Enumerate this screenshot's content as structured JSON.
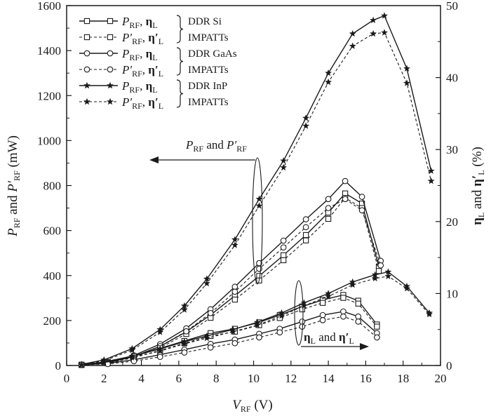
{
  "chart_data": {
    "type": "line",
    "xlabel": {
      "main": "V",
      "sub": "RF",
      "unit": " (V)"
    },
    "ylabel_left": {
      "p1": "P",
      "s1": "RF",
      "mid": " and ",
      "p2": "P′",
      "s2": "RF",
      "unit": " (mW)"
    },
    "ylabel_right": {
      "p1": "η",
      "s1": "L",
      "mid": " and ",
      "p2": "η′",
      "s2": "L",
      "unit": " (%)"
    },
    "xlim": [
      0,
      20
    ],
    "ylim_left": [
      0,
      1600
    ],
    "ylim_right": [
      0,
      50
    ],
    "x_ticks": [
      "0",
      "2",
      "4",
      "6",
      "8",
      "10",
      "12",
      "14",
      "16",
      "18",
      "20"
    ],
    "y_left_ticks": [
      "0",
      "200",
      "400",
      "600",
      "800",
      "1000",
      "1200",
      "1400",
      "1600"
    ],
    "y_right_ticks": [
      "0",
      "10",
      "20",
      "30",
      "40",
      "50"
    ],
    "annotations": {
      "power_group": {
        "p1": "P",
        "s1": "RF",
        "mid": " and ",
        "p2": "P′",
        "s2": "RF"
      },
      "eff_group": {
        "p1": "η",
        "s1": "L",
        "mid": " and ",
        "p2": "η′",
        "s2": "L"
      }
    },
    "legend": {
      "placement": "top-left",
      "entries": [
        {
          "p": "P",
          "ps": "RF",
          "e": "η",
          "es": "L",
          "device": "DDR Si"
        },
        {
          "p": "P′",
          "ps": "RF",
          "e": "η′",
          "es": "L",
          "device": "IMPATTs"
        },
        {
          "p": "P",
          "ps": "RF",
          "e": "η",
          "es": "L",
          "device": "DDR GaAs"
        },
        {
          "p": "P′",
          "ps": "RF",
          "e": "η′",
          "es": "L",
          "device": "IMPATTs"
        },
        {
          "p": "P",
          "ps": "RF",
          "e": "η",
          "es": "L",
          "device": "DDR InP"
        },
        {
          "p": "P′",
          "ps": "RF",
          "e": "η′",
          "es": "L",
          "device": "IMPATTs"
        }
      ]
    },
    "series": [
      {
        "name": "P_RF DDR Si",
        "axis": "left",
        "marker": "square",
        "dash": false,
        "x": [
          0.8,
          2.2,
          3.6,
          5.0,
          6.4,
          7.7,
          9.0,
          10.3,
          11.6,
          12.8,
          14.0,
          14.9,
          15.8,
          16.7
        ],
        "y": [
          3,
          12,
          40,
          85,
          150,
          225,
          310,
          398,
          490,
          580,
          680,
          765,
          720,
          440
        ]
      },
      {
        "name": "P′_RF DDR Si",
        "axis": "left",
        "marker": "square",
        "dash": true,
        "x": [
          0.8,
          2.2,
          3.6,
          5.0,
          6.4,
          7.7,
          9.0,
          10.3,
          11.6,
          12.8,
          14.0,
          14.9,
          15.8,
          16.7
        ],
        "y": [
          2,
          10,
          36,
          79,
          140,
          212,
          293,
          378,
          468,
          556,
          652,
          745,
          700,
          420
        ]
      },
      {
        "name": "P_RF DDR GaAs",
        "axis": "left",
        "marker": "circle",
        "dash": false,
        "x": [
          0.8,
          2.2,
          3.6,
          5.0,
          6.4,
          7.7,
          9.0,
          10.3,
          11.6,
          12.8,
          14.0,
          14.9,
          15.8,
          16.8
        ],
        "y": [
          3,
          14,
          45,
          95,
          165,
          250,
          350,
          455,
          555,
          650,
          740,
          820,
          750,
          465
        ]
      },
      {
        "name": "P′_RF DDR GaAs",
        "axis": "left",
        "marker": "circle",
        "dash": true,
        "x": [
          0.8,
          2.2,
          3.6,
          5.0,
          6.4,
          7.7,
          9.0,
          10.3,
          11.6,
          12.8,
          14.0,
          14.9,
          15.8,
          16.8
        ],
        "y": [
          2,
          11,
          40,
          86,
          152,
          233,
          328,
          430,
          525,
          615,
          700,
          740,
          690,
          445
        ]
      },
      {
        "name": "P_RF DDR InP",
        "axis": "left",
        "marker": "star",
        "dash": false,
        "x": [
          0.8,
          2.0,
          3.5,
          5.0,
          6.3,
          7.5,
          9.0,
          10.3,
          11.6,
          12.8,
          14.0,
          15.3,
          16.4,
          17.0,
          18.2,
          19.5
        ],
        "y": [
          5,
          25,
          75,
          160,
          265,
          385,
          560,
          740,
          910,
          1100,
          1300,
          1475,
          1535,
          1555,
          1320,
          865
        ]
      },
      {
        "name": "P′_RF DDR InP",
        "axis": "left",
        "marker": "star",
        "dash": true,
        "x": [
          0.8,
          2.0,
          3.5,
          5.0,
          6.3,
          7.5,
          9.0,
          10.3,
          11.6,
          12.8,
          14.0,
          15.3,
          16.4,
          17.0,
          18.2,
          19.5
        ],
        "y": [
          4,
          21,
          68,
          148,
          248,
          365,
          535,
          710,
          880,
          1065,
          1260,
          1420,
          1475,
          1480,
          1255,
          820
        ]
      },
      {
        "name": "η_L DDR Si",
        "axis": "right",
        "marker": "square",
        "dash": false,
        "x": [
          0.8,
          2.2,
          3.6,
          5.0,
          6.3,
          7.7,
          9.0,
          10.3,
          11.4,
          12.6,
          13.7,
          14.8,
          15.6,
          16.6
        ],
        "y": [
          0.1,
          0.5,
          1.3,
          2.4,
          3.4,
          4.5,
          5.1,
          6.0,
          7.0,
          8.2,
          9.1,
          9.8,
          9.0,
          5.7
        ]
      },
      {
        "name": "η′_L DDR Si",
        "axis": "right",
        "marker": "square",
        "dash": true,
        "x": [
          0.8,
          2.2,
          3.6,
          5.0,
          6.3,
          7.7,
          9.0,
          10.3,
          11.4,
          12.6,
          13.7,
          14.8,
          15.6,
          16.6
        ],
        "y": [
          0.1,
          0.4,
          1.1,
          2.1,
          3.1,
          4.1,
          4.7,
          5.6,
          6.6,
          7.8,
          8.7,
          9.4,
          8.6,
          5.4
        ]
      },
      {
        "name": "η_L DDR GaAs",
        "axis": "right",
        "marker": "circle",
        "dash": false,
        "x": [
          0.8,
          2.2,
          3.6,
          5.0,
          6.3,
          7.7,
          9.0,
          10.3,
          11.4,
          12.6,
          13.7,
          14.8,
          15.6,
          16.6
        ],
        "y": [
          0.1,
          0.3,
          0.8,
          1.5,
          2.2,
          3.0,
          3.6,
          4.4,
          5.1,
          6.1,
          7.0,
          7.5,
          6.8,
          4.5
        ]
      },
      {
        "name": "η′_L DDR GaAs",
        "axis": "right",
        "marker": "circle",
        "dash": true,
        "x": [
          0.8,
          2.2,
          3.6,
          5.0,
          6.3,
          7.7,
          9.0,
          10.3,
          11.4,
          12.6,
          13.7,
          14.8,
          15.6,
          16.6
        ],
        "y": [
          0.1,
          0.2,
          0.6,
          1.2,
          1.8,
          2.5,
          3.1,
          3.9,
          4.6,
          5.4,
          6.3,
          6.8,
          6.1,
          3.9
        ]
      },
      {
        "name": "η_L DDR InP",
        "axis": "right",
        "marker": "star",
        "dash": false,
        "x": [
          0.8,
          2.0,
          3.5,
          5.0,
          6.3,
          7.5,
          8.9,
          10.2,
          11.5,
          12.7,
          14.0,
          15.3,
          16.5,
          17.2,
          18.2,
          19.4
        ],
        "y": [
          0.1,
          0.5,
          1.3,
          2.3,
          3.3,
          4.1,
          5.0,
          6.0,
          7.3,
          8.7,
          10.0,
          11.6,
          12.6,
          13.0,
          11.0,
          7.3
        ]
      },
      {
        "name": "η′_L DDR InP",
        "axis": "right",
        "marker": "star",
        "dash": true,
        "x": [
          0.8,
          2.0,
          3.5,
          5.0,
          6.3,
          7.5,
          8.9,
          10.2,
          11.5,
          12.7,
          14.0,
          15.3,
          16.5,
          17.2,
          18.2,
          19.4
        ],
        "y": [
          0.1,
          0.4,
          1.1,
          2.0,
          3.0,
          3.8,
          4.7,
          5.6,
          6.9,
          8.3,
          9.6,
          11.2,
          12.1,
          12.4,
          10.7,
          7.1
        ]
      }
    ]
  }
}
